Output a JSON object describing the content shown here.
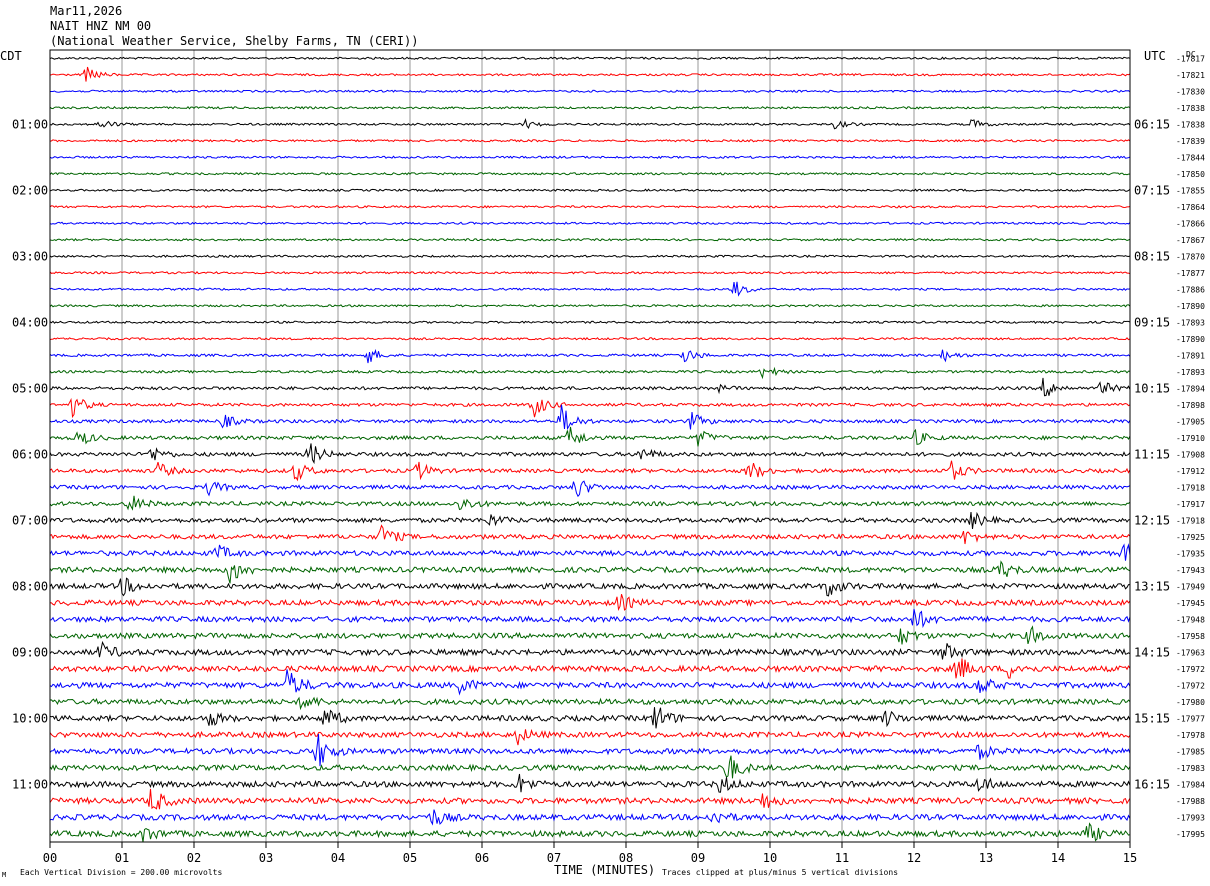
{
  "header": {
    "date": "Mar11,2026",
    "station": "NAIT HNZ NM 00",
    "location": "(National Weather Service, Shelby Farms, TN (CERI))"
  },
  "axis": {
    "left_tz": "CDT",
    "right_tz": "UTC",
    "right_unit": "DC",
    "xlabel": "TIME (MINUTES)"
  },
  "footer": {
    "scale_note": "Each Vertical Division =  200.00 microvolts",
    "clip_note": "Traces clipped at plus/minus 5 vertical divisions",
    "corner_mark": "M"
  },
  "colors": {
    "trace_cycle": [
      "#000000",
      "#ff0000",
      "#0000ff",
      "#006400"
    ],
    "grid": "#808080"
  },
  "chart_data": {
    "type": "line",
    "title": "NAIT HNZ NM 00",
    "xlabel": "TIME (MINUTES)",
    "xlim": [
      0,
      15
    ],
    "x_ticks": [
      "00",
      "01",
      "02",
      "03",
      "04",
      "05",
      "06",
      "07",
      "08",
      "09",
      "10",
      "11",
      "12",
      "13",
      "14",
      "15"
    ],
    "cdt_hour_labels": [
      {
        "row": 4,
        "label": "01:00"
      },
      {
        "row": 8,
        "label": "02:00"
      },
      {
        "row": 12,
        "label": "03:00"
      },
      {
        "row": 16,
        "label": "04:00"
      },
      {
        "row": 20,
        "label": "05:00"
      },
      {
        "row": 24,
        "label": "06:00"
      },
      {
        "row": 28,
        "label": "07:00"
      },
      {
        "row": 32,
        "label": "08:00"
      },
      {
        "row": 36,
        "label": "09:00"
      },
      {
        "row": 40,
        "label": "10:00"
      },
      {
        "row": 44,
        "label": "11:00"
      }
    ],
    "utc_hour_labels": [
      {
        "row": 4,
        "label": "06:15"
      },
      {
        "row": 8,
        "label": "07:15"
      },
      {
        "row": 12,
        "label": "08:15"
      },
      {
        "row": 16,
        "label": "09:15"
      },
      {
        "row": 20,
        "label": "10:15"
      },
      {
        "row": 24,
        "label": "11:15"
      },
      {
        "row": 28,
        "label": "12:15"
      },
      {
        "row": 32,
        "label": "13:15"
      },
      {
        "row": 36,
        "label": "14:15"
      },
      {
        "row": 40,
        "label": "15:15"
      },
      {
        "row": 44,
        "label": "16:15"
      }
    ],
    "dc_offsets": [
      "-17817",
      "-17821",
      "-17830",
      "-17838",
      "-17838",
      "-17839",
      "-17844",
      "-17850",
      "-17855",
      "-17864",
      "-17866",
      "-17867",
      "-17870",
      "-17877",
      "-17886",
      "-17890",
      "-17893",
      "-17890",
      "-17891",
      "-17893",
      "-17894",
      "-17898",
      "-17905",
      "-17910",
      "-17908",
      "-17912",
      "-17918",
      "-17917",
      "-17918",
      "-17925",
      "-17935",
      "-17943",
      "-17949",
      "-17945",
      "-17948",
      "-17958",
      "-17963",
      "-17972",
      "-17972",
      "-17980",
      "-17977",
      "-17978",
      "-17985",
      "-17983",
      "-17984",
      "-17988",
      "-17993",
      "-17995"
    ],
    "row_noise": [
      1,
      1,
      1,
      1,
      1,
      1,
      1,
      1,
      1,
      1,
      1,
      1,
      1,
      1,
      1,
      1,
      1,
      1,
      1.2,
      1.2,
      1.5,
      1.5,
      1.6,
      1.8,
      1.9,
      1.9,
      1.9,
      2,
      2.2,
      2.2,
      2.4,
      2.6,
      2.6,
      2.6,
      2.6,
      2.6,
      2.8,
      2.8,
      2.8,
      2.6,
      2.6,
      2.6,
      2.6,
      2.6,
      2.8,
      2.8,
      2.8,
      2.8
    ],
    "events": [
      {
        "row": 1,
        "minute": 0.5,
        "amp": 8
      },
      {
        "row": 4,
        "minute": 0.7,
        "amp": 5
      },
      {
        "row": 4,
        "minute": 6.6,
        "amp": 4
      },
      {
        "row": 4,
        "minute": 10.9,
        "amp": 4
      },
      {
        "row": 4,
        "minute": 12.8,
        "amp": 5
      },
      {
        "row": 14,
        "minute": 9.5,
        "amp": 9
      },
      {
        "row": 18,
        "minute": 4.4,
        "amp": 9
      },
      {
        "row": 18,
        "minute": 8.8,
        "amp": 8
      },
      {
        "row": 18,
        "minute": 12.4,
        "amp": 6
      },
      {
        "row": 19,
        "minute": 9.9,
        "amp": 7
      },
      {
        "row": 20,
        "minute": 9.2,
        "amp": 5
      },
      {
        "row": 20,
        "minute": 13.8,
        "amp": 11
      },
      {
        "row": 20,
        "minute": 14.6,
        "amp": 7
      },
      {
        "row": 21,
        "minute": 0.3,
        "amp": 12
      },
      {
        "row": 21,
        "minute": 6.7,
        "amp": 14
      },
      {
        "row": 22,
        "minute": 2.4,
        "amp": 7
      },
      {
        "row": 22,
        "minute": 7.1,
        "amp": 16
      },
      {
        "row": 22,
        "minute": 8.9,
        "amp": 9
      },
      {
        "row": 23,
        "minute": 0.4,
        "amp": 8
      },
      {
        "row": 23,
        "minute": 7.2,
        "amp": 12
      },
      {
        "row": 23,
        "minute": 9.0,
        "amp": 8
      },
      {
        "row": 23,
        "minute": 12.0,
        "amp": 8
      },
      {
        "row": 24,
        "minute": 1.4,
        "amp": 8
      },
      {
        "row": 24,
        "minute": 3.6,
        "amp": 12
      },
      {
        "row": 24,
        "minute": 8.2,
        "amp": 7
      },
      {
        "row": 25,
        "minute": 1.5,
        "amp": 8
      },
      {
        "row": 25,
        "minute": 3.4,
        "amp": 10
      },
      {
        "row": 25,
        "minute": 5.1,
        "amp": 9
      },
      {
        "row": 25,
        "minute": 9.7,
        "amp": 12
      },
      {
        "row": 25,
        "minute": 12.5,
        "amp": 11
      },
      {
        "row": 26,
        "minute": 2.2,
        "amp": 7
      },
      {
        "row": 26,
        "minute": 7.3,
        "amp": 12
      },
      {
        "row": 27,
        "minute": 1.1,
        "amp": 10
      },
      {
        "row": 27,
        "minute": 5.7,
        "amp": 8
      },
      {
        "row": 28,
        "minute": 6.1,
        "amp": 6
      },
      {
        "row": 28,
        "minute": 12.8,
        "amp": 8
      },
      {
        "row": 29,
        "minute": 4.6,
        "amp": 12
      },
      {
        "row": 29,
        "minute": 12.7,
        "amp": 7
      },
      {
        "row": 30,
        "minute": 2.3,
        "amp": 9
      },
      {
        "row": 30,
        "minute": 14.9,
        "amp": 10
      },
      {
        "row": 31,
        "minute": 2.5,
        "amp": 14
      },
      {
        "row": 31,
        "minute": 13.2,
        "amp": 9
      },
      {
        "row": 32,
        "minute": 1.0,
        "amp": 9
      },
      {
        "row": 32,
        "minute": 10.8,
        "amp": 10
      },
      {
        "row": 33,
        "minute": 7.9,
        "amp": 8
      },
      {
        "row": 34,
        "minute": 12.0,
        "amp": 11
      },
      {
        "row": 35,
        "minute": 11.8,
        "amp": 9
      },
      {
        "row": 35,
        "minute": 13.6,
        "amp": 9
      },
      {
        "row": 36,
        "minute": 0.7,
        "amp": 9
      },
      {
        "row": 36,
        "minute": 12.4,
        "amp": 10
      },
      {
        "row": 37,
        "minute": 12.6,
        "amp": 14
      },
      {
        "row": 37,
        "minute": 13.3,
        "amp": 9
      },
      {
        "row": 38,
        "minute": 3.3,
        "amp": 16
      },
      {
        "row": 38,
        "minute": 5.7,
        "amp": 8
      },
      {
        "row": 38,
        "minute": 12.9,
        "amp": 9
      },
      {
        "row": 39,
        "minute": 3.5,
        "amp": 8
      },
      {
        "row": 40,
        "minute": 2.2,
        "amp": 8
      },
      {
        "row": 40,
        "minute": 3.8,
        "amp": 12
      },
      {
        "row": 40,
        "minute": 8.4,
        "amp": 15
      },
      {
        "row": 40,
        "minute": 11.6,
        "amp": 8
      },
      {
        "row": 41,
        "minute": 6.5,
        "amp": 8
      },
      {
        "row": 42,
        "minute": 3.7,
        "amp": 20
      },
      {
        "row": 42,
        "minute": 12.9,
        "amp": 7
      },
      {
        "row": 43,
        "minute": 9.4,
        "amp": 16
      },
      {
        "row": 44,
        "minute": 6.5,
        "amp": 10
      },
      {
        "row": 44,
        "minute": 9.3,
        "amp": 9
      },
      {
        "row": 44,
        "minute": 12.9,
        "amp": 8
      },
      {
        "row": 45,
        "minute": 1.4,
        "amp": 14
      },
      {
        "row": 45,
        "minute": 9.9,
        "amp": 9
      },
      {
        "row": 46,
        "minute": 5.3,
        "amp": 9
      },
      {
        "row": 46,
        "minute": 9.2,
        "amp": 8
      },
      {
        "row": 47,
        "minute": 1.3,
        "amp": 8
      },
      {
        "row": 47,
        "minute": 14.4,
        "amp": 10
      }
    ]
  }
}
